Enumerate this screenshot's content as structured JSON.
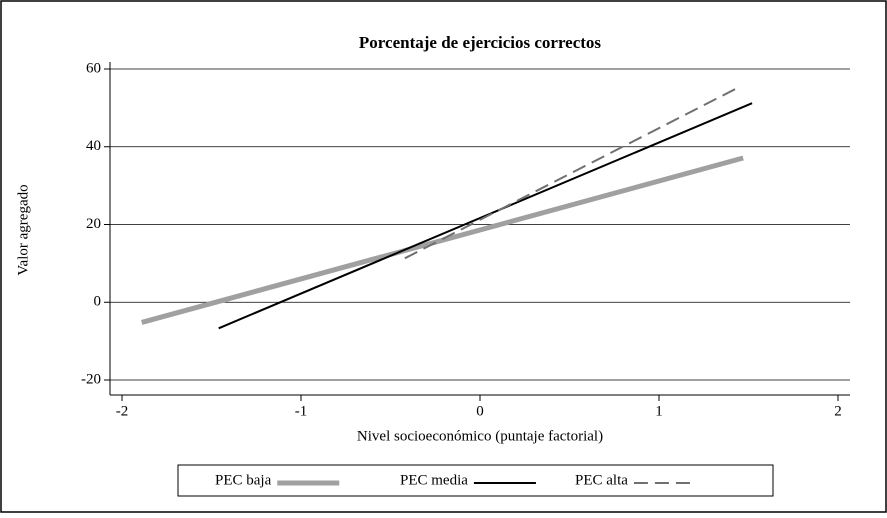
{
  "chart_data": {
    "type": "line",
    "title": "Porcentaje de ejercicios correctos",
    "x_label": "Nivel socioeconómico (puntaje factorial)",
    "y_label": "Valor agregado",
    "series": [
      {
        "name": "PEC baja",
        "color": "#a0a0a0",
        "width": 5,
        "dashed": false,
        "x": [
          -1.89,
          1.47
        ],
        "values": [
          -5.2,
          37.1
        ]
      },
      {
        "name": "PEC media",
        "color": "#000000",
        "width": 2,
        "dashed": false,
        "x": [
          -1.46,
          1.52
        ],
        "values": [
          -6.7,
          51.2
        ]
      },
      {
        "name": "PEC alta",
        "color": "#707070",
        "width": 2,
        "dashed": true,
        "x": [
          -0.42,
          1.45
        ],
        "values": [
          11.3,
          55.4
        ]
      }
    ],
    "xlim": [
      -2,
      2
    ],
    "xticks": [
      -2,
      -1,
      0,
      1,
      2
    ],
    "ylim": [
      -20,
      60
    ],
    "yticks": [
      -20,
      0,
      20,
      40,
      60
    ],
    "grid": true,
    "legend": "bottom"
  }
}
